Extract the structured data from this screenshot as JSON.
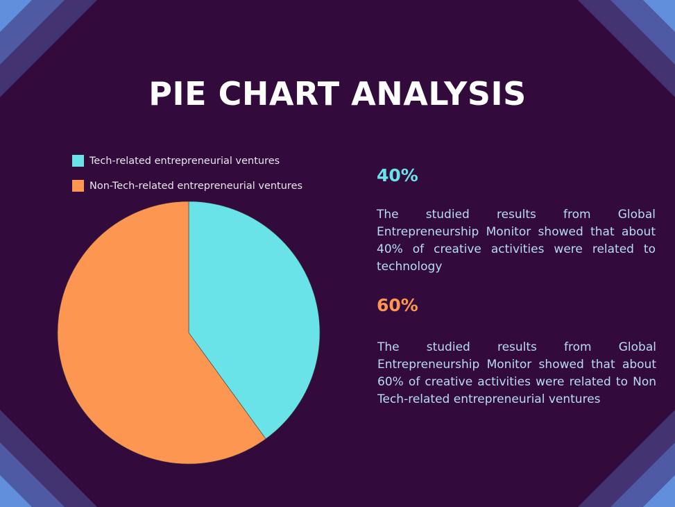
{
  "title": "PIE CHART ANALYSIS",
  "colors": {
    "background": "#320b3c",
    "tech": "#6ae3e8",
    "non_tech": "#fd9650",
    "text": "#b8dcf0"
  },
  "chart_data": {
    "type": "pie",
    "legend_placement": "top-left",
    "categories": [
      "Tech-related entrepreneurial ventures",
      "Non-Tech-related entrepreneurial ventures"
    ],
    "values": [
      40,
      60
    ],
    "colors": [
      "#6ae3e8",
      "#fd9650"
    ]
  },
  "stats": [
    {
      "value": "40%",
      "color": "#6ae3e8",
      "text": "The studied results from Global Entrepreneurship Monitor showed that about 40% of creative activities were related to technology"
    },
    {
      "value": "60%",
      "color": "#fd9650",
      "text": "The studied results from Global Entrepreneurship Monitor showed that about 60% of creative activities were related to Non Tech-related entrepreneurial ventures"
    }
  ]
}
